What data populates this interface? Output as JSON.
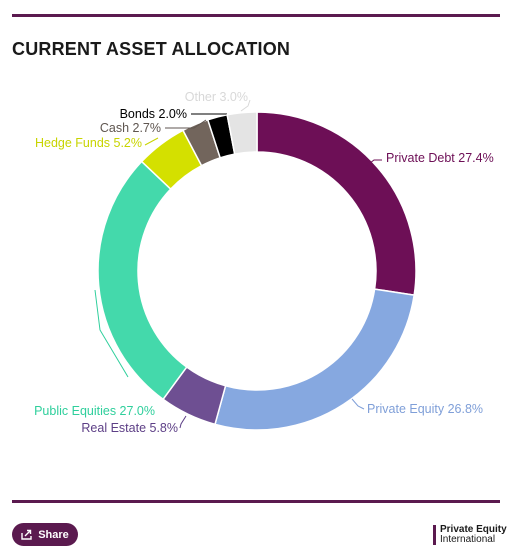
{
  "title": "CURRENT ASSET ALLOCATION",
  "share_label": "Share",
  "logo": {
    "line1": "Private Equity",
    "line2": "International"
  },
  "colors": {
    "brand": "#5b1a4f"
  },
  "chart_data": {
    "type": "pie",
    "variant": "donut",
    "title": "CURRENT ASSET ALLOCATION",
    "slices": [
      {
        "name": "Private Debt",
        "value": 27.4,
        "label": "Private Debt 27.4%",
        "color": "#6d0f56",
        "label_color": "#6d0f56"
      },
      {
        "name": "Private Equity",
        "value": 26.8,
        "label": "Private Equity 26.8%",
        "color": "#86a8e0",
        "label_color": "#7f9fd8"
      },
      {
        "name": "Real Estate",
        "value": 5.8,
        "label": "Real Estate 5.8%",
        "color": "#6e4f92",
        "label_color": "#5d3f86"
      },
      {
        "name": "Public Equities",
        "value": 27.0,
        "label": "Public Equities 27.0%",
        "color": "#44d9ab",
        "label_color": "#2fcf9c"
      },
      {
        "name": "Hedge Funds",
        "value": 5.2,
        "label": "Hedge Funds 5.2%",
        "color": "#d4e000",
        "label_color": "#c8d400"
      },
      {
        "name": "Cash",
        "value": 2.7,
        "label": "Cash 2.7%",
        "color": "#72655c",
        "label_color": "#5f5650"
      },
      {
        "name": "Bonds",
        "value": 2.0,
        "label": "Bonds 2.0%",
        "color": "#000000",
        "label_color": "#000000"
      },
      {
        "name": "Other",
        "value": 3.0,
        "label": "Other 3.0%",
        "color": "#e4e4e4",
        "label_color": "#d8d8d8"
      }
    ]
  }
}
